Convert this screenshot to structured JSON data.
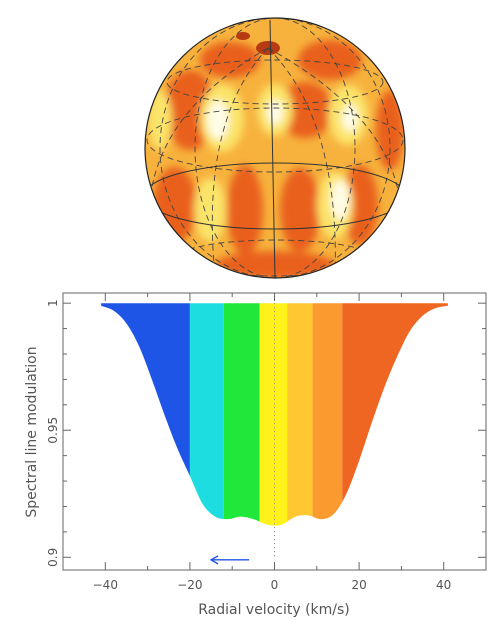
{
  "chart_data": {
    "type": "area",
    "xlabel": "Radial velocity (km/s)",
    "ylabel": "Spectral line modulation",
    "xlim": [
      -50,
      50
    ],
    "ylim": [
      0.895,
      1.004
    ],
    "x_ticks": [
      -40,
      -20,
      0,
      20,
      40
    ],
    "x_tick_labels": [
      "−40",
      "−20",
      "0",
      "20",
      "40"
    ],
    "y_ticks": [
      0.9,
      0.95,
      1
    ],
    "y_tick_labels": [
      "0.9",
      "0.95",
      "1"
    ],
    "line_profile": {
      "x": [
        -41,
        -38,
        -35,
        -32,
        -29,
        -26,
        -23,
        -20,
        -17,
        -14,
        -11,
        -8,
        -5,
        -2,
        0,
        2,
        5,
        8,
        11,
        14,
        17,
        20,
        23,
        26,
        29,
        32,
        35,
        38,
        41
      ],
      "y": [
        0.999,
        0.997,
        0.992,
        0.983,
        0.97,
        0.956,
        0.943,
        0.932,
        0.921,
        0.916,
        0.915,
        0.916,
        0.915,
        0.913,
        0.9125,
        0.913,
        0.916,
        0.9165,
        0.915,
        0.917,
        0.925,
        0.938,
        0.953,
        0.967,
        0.979,
        0.989,
        0.995,
        0.998,
        0.999
      ]
    },
    "velocity_bands": [
      {
        "x0": -41,
        "x1": -20,
        "color": "#1f55e6"
      },
      {
        "x0": -20,
        "x1": -12,
        "color": "#1ddde0"
      },
      {
        "x0": -12,
        "x1": -3.5,
        "color": "#1fe83a"
      },
      {
        "x0": -3.5,
        "x1": 3,
        "color": "#fff21a"
      },
      {
        "x0": 3,
        "x1": 9,
        "color": "#ffc830"
      },
      {
        "x0": 9,
        "x1": 16,
        "color": "#fb9a2e"
      },
      {
        "x0": 16,
        "x1": 41,
        "color": "#ee6622"
      }
    ],
    "rest_velocity_marker": {
      "x": 0,
      "y0": 0.9,
      "y1": 1.0
    },
    "motion_arrow": {
      "x_from": -6,
      "x_to": -15,
      "y": 0.899,
      "color": "#1f55e6"
    },
    "grid": false,
    "legend": "none"
  },
  "star_map": {
    "colors": {
      "dark_spot": "#b63a12",
      "medium_spot": "#e9601c",
      "light": "#f79a2c",
      "base": "#f7b23d",
      "bright": "#fbe46a",
      "hot": "#fffde8"
    },
    "grid_style": "dashed latitude and longitude lines",
    "equator_style": "solid line"
  }
}
